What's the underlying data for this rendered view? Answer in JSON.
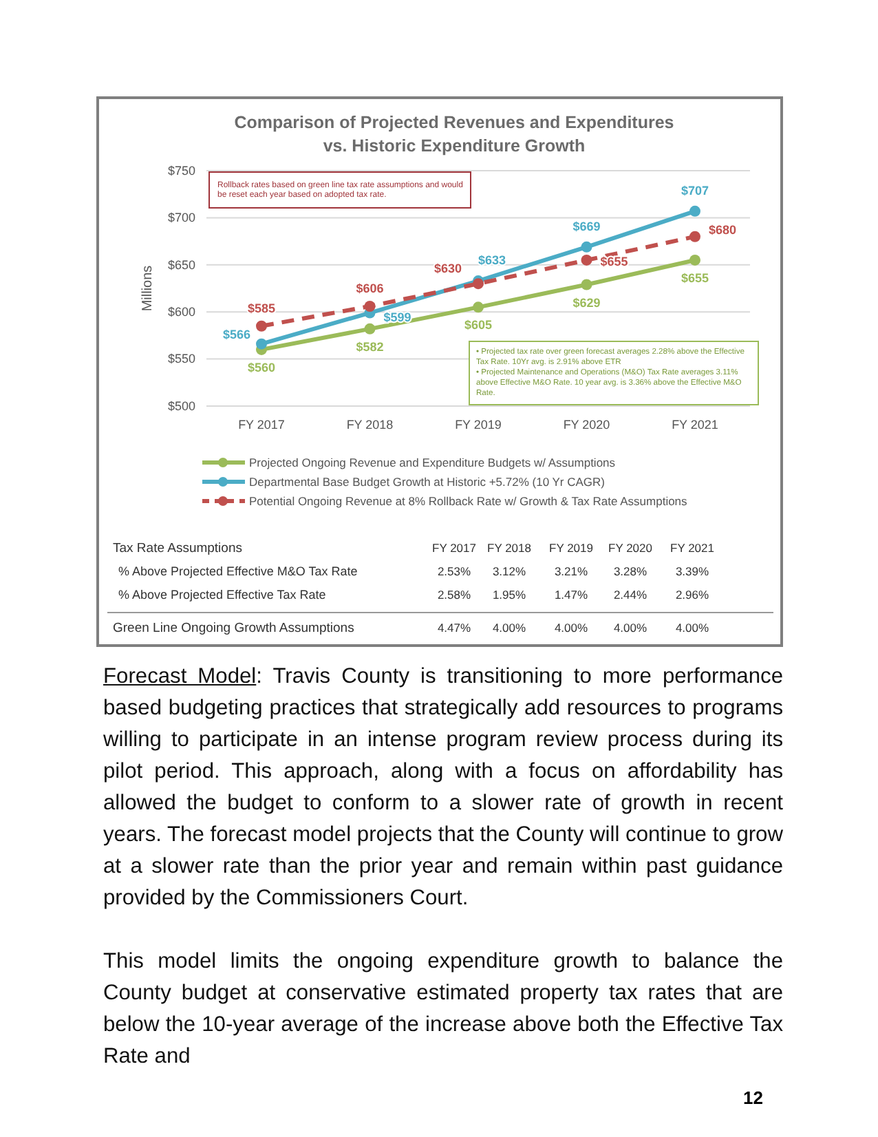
{
  "chart_data": {
    "type": "line",
    "title": "Comparison of Projected Revenues and Expenditures",
    "subtitle": "vs. Historic Expenditure Growth",
    "ylabel": "Millions",
    "categories": [
      "FY 2017",
      "FY 2018",
      "FY 2019",
      "FY 2020",
      "FY 2021"
    ],
    "series": [
      {
        "name": "Projected Ongoing Revenue and Expenditure Budgets w/ Assumptions",
        "color": "#9bbb59",
        "values": [
          560,
          582,
          605,
          629,
          655
        ],
        "value_labels": [
          "$560",
          "$582",
          "$605",
          "$629",
          "$655"
        ]
      },
      {
        "name": "Departmental Base Budget Growth at Historic +5.72% (10 Yr CAGR)",
        "color": "#4bacc6",
        "values": [
          566,
          599,
          633,
          669,
          707
        ],
        "value_labels": [
          "$566",
          "$599",
          "$633",
          "$669",
          "$707"
        ]
      },
      {
        "name": "Potential Ongoing Revenue at 8% Rollback Rate w/ Growth & Tax Rate Assumptions",
        "color": "#c0504d",
        "line_style": "dashed",
        "values": [
          585,
          606,
          630,
          655,
          680
        ],
        "value_labels": [
          "$585",
          "$606",
          "$630",
          "$655",
          "$680"
        ]
      }
    ],
    "ylim": [
      500,
      750
    ],
    "yticks": [
      {
        "value": 500,
        "label": "$500"
      },
      {
        "value": 550,
        "label": "$550"
      },
      {
        "value": 600,
        "label": "$600"
      },
      {
        "value": 650,
        "label": "$650"
      },
      {
        "value": 700,
        "label": "$700"
      },
      {
        "value": 750,
        "label": "$750"
      }
    ],
    "grid": "y",
    "legend": "bottom",
    "marker": "circle",
    "line_style": "solid",
    "annotations": [
      "Rollback rates based on green line tax rate assumptions and would be reset each year based on adopted tax rate.",
      "• Projected tax rate over green forecast averages 2.28% above the Effective Tax Rate. 10Yr avg. is 2.91% above ETR",
      "• Projected Maintenance and Operations (M&O) Tax Rate averages 3.11% above Effective M&O Rate. 10 year avg. is 3.36% above the Effective M&O Rate.",
      "Tax Rate Assumptions",
      "FY 2017",
      "FY 2018",
      "FY 2019",
      "FY 2020",
      "FY 2021",
      "% Above Projected Effective M&O Tax Rate",
      "2.53%",
      "3.12%",
      "3.21%",
      "3.28%",
      "3.39%",
      "% Above Projected Effective Tax Rate",
      "2.58%",
      "1.95%",
      "1.47%",
      "2.44%",
      "2.96%",
      "Green Line Ongoing Growth Assumptions",
      "4.47%",
      "4.00%",
      "4.00%",
      "4.00%",
      "4.00%",
      "Forecast Model: Travis County is transitioning to more performance based budgeting practices that strategically add resources to programs willing to participate in an intense program review process during its pilot period.  This approach, along with a focus on affordability has allowed the budget to conform to a slower rate of growth in recent years. The forecast model projects that the County will continue to grow at a slower rate than the prior year and remain within past guidance provided by the Commissioners Court.",
      "This model limits the ongoing expenditure growth to balance the County budget at conservative estimated property tax rates that are below the 10-year average of the increase above both the Effective Tax Rate and",
      "12"
    ]
  }
}
